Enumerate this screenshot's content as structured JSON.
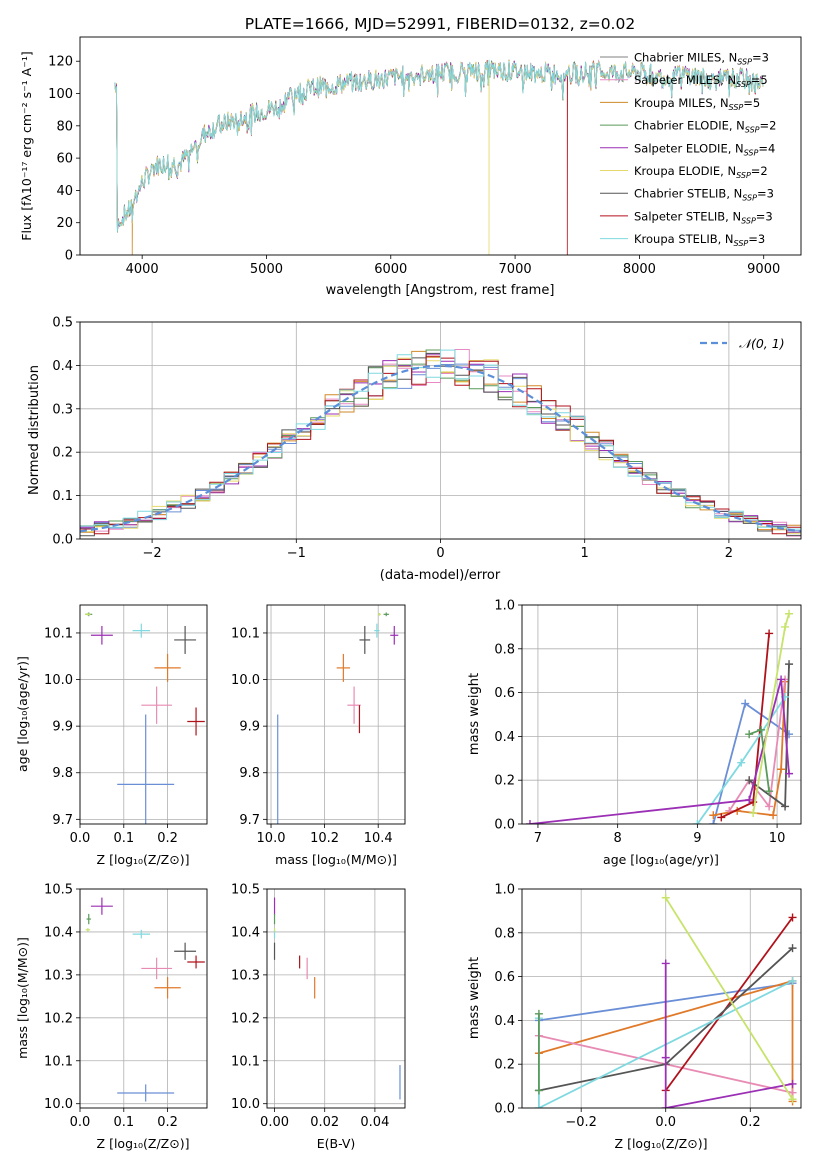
{
  "colors": {
    "series": [
      "#808080",
      "#e78ac3",
      "#d08a28",
      "#5a9a5a",
      "#9b2fb5",
      "#e6d96b",
      "#555555",
      "#b0121b",
      "#7fd9e0"
    ],
    "ssp_pts": [
      "#6a8fd6",
      "#e07a2a",
      "#e88bb4",
      "#b0121b",
      "#555555",
      "#7fd9e0",
      "#9b2fb5",
      "#5a9a5a",
      "#c6e36a"
    ],
    "gauss": "#5b8fd9",
    "grid": "#b0b0b0"
  },
  "panels": {
    "spectrum": {
      "title": "PLATE=1666, MJD=52991, FIBERID=0132, z=0.02",
      "ylabel": "Flux [fλ10⁻¹⁷ erg cm⁻² s⁻¹ A⁻¹]",
      "xlabel": "wavelength [Angstrom, rest frame]",
      "xticks": [
        "4000",
        "5000",
        "6000",
        "7000",
        "8000",
        "9000"
      ],
      "yticks": [
        "0",
        "20",
        "40",
        "60",
        "80",
        "100",
        "120"
      ],
      "legend": [
        "Chabrier MILES, N_SSP=3",
        "Salpeter MILES, N_SSP=5",
        "Kroupa MILES, N_SSP=5",
        "Chabrier ELODIE, N_SSP=2",
        "Salpeter ELODIE, N_SSP=4",
        "Kroupa ELODIE, N_SSP=2",
        "Chabrier STELIB, N_SSP=3",
        "Salpeter STELIB, N_SSP=3",
        "Kroupa STELIB, N_SSP=3"
      ]
    },
    "residuals": {
      "ylabel": "Normed distribution",
      "xlabel": "(data-model)/error",
      "xticks": [
        "−2",
        "−1",
        "0",
        "1",
        "2"
      ],
      "yticks": [
        "0.0",
        "0.1",
        "0.2",
        "0.3",
        "0.4",
        "0.5"
      ],
      "legend": "𝒩(0, 1)"
    },
    "age_z": {
      "ylabel": "age  [log₁₀(age/yr)]",
      "xlabel": "Z [log₁₀(Z/Z⊙)]",
      "xticks": [
        "0.0",
        "0.1",
        "0.2"
      ],
      "yticks": [
        "9.7",
        "9.8",
        "9.9",
        "10.0",
        "10.1"
      ]
    },
    "age_mass": {
      "xlabel": "mass [log₁₀(M/M⊙)]",
      "xticks": [
        "10.0",
        "10.2",
        "10.4"
      ],
      "yticks": [
        "9.7",
        "9.8",
        "9.9",
        "10.0",
        "10.1"
      ]
    },
    "mw_age": {
      "ylabel": "mass weight",
      "xlabel": "age  [log₁₀(age/yr)]",
      "xticks": [
        "7",
        "8",
        "9",
        "10"
      ],
      "yticks": [
        "0.0",
        "0.2",
        "0.4",
        "0.6",
        "0.8",
        "1.0"
      ]
    },
    "mass_z": {
      "ylabel": "mass [log₁₀(M/M⊙)]",
      "xlabel": "Z [log₁₀(Z/Z⊙)]",
      "xticks": [
        "0.0",
        "0.1",
        "0.2"
      ],
      "yticks": [
        "10.0",
        "10.1",
        "10.2",
        "10.3",
        "10.4",
        "10.5"
      ]
    },
    "mass_ebv": {
      "xlabel": "E(B-V)",
      "xticks": [
        "0.00",
        "0.02",
        "0.04"
      ],
      "yticks": [
        "10.0",
        "10.1",
        "10.2",
        "10.3",
        "10.4",
        "10.5"
      ]
    },
    "mw_z": {
      "ylabel": "mass weight",
      "xlabel": "Z [log₁₀(Z/Z⊙)]",
      "xticks": [
        "−0.2",
        "0.0",
        "0.2"
      ],
      "yticks": [
        "0.0",
        "0.2",
        "0.4",
        "0.6",
        "0.8",
        "1.0"
      ]
    }
  },
  "chart_data": [
    {
      "type": "line",
      "title": "PLATE=1666, MJD=52991, FIBERID=0132, z=0.02",
      "xlabel": "wavelength [Angstrom, rest frame]",
      "ylabel": "Flux [fλ10⁻¹⁷ erg cm⁻² s⁻¹ A⁻¹]",
      "xlim": [
        3500,
        9300
      ],
      "ylim": [
        0,
        135
      ],
      "continuum": {
        "x": [
          3800,
          3900,
          4000,
          4100,
          4200,
          4300,
          4400,
          4500,
          4600,
          4800,
          5000,
          5100,
          5200,
          5300,
          5400,
          5600,
          5800,
          6000,
          6200,
          6400,
          6600,
          6800,
          7000,
          7200,
          7400,
          7600,
          7800,
          8000,
          8200,
          8400,
          8600,
          8800,
          9000
        ],
        "y": [
          20,
          28,
          45,
          55,
          58,
          56,
          65,
          75,
          80,
          85,
          90,
          92,
          100,
          102,
          104,
          106,
          108,
          110,
          112,
          113,
          114,
          115,
          114,
          113,
          112,
          114,
          113,
          113,
          110,
          112,
          108,
          110,
          106
        ]
      },
      "dropouts": [
        {
          "x": 3920,
          "series": "Kroupa MILES, N_SSP=5"
        },
        {
          "x": 6790,
          "series": "Kroupa ELODIE, N_SSP=2"
        },
        {
          "x": 7420,
          "series": "Salpeter STELIB, N_SSP=3"
        }
      ],
      "series": [
        {
          "name": "Chabrier MILES, N_SSP=3"
        },
        {
          "name": "Salpeter MILES, N_SSP=5"
        },
        {
          "name": "Kroupa MILES, N_SSP=5"
        },
        {
          "name": "Chabrier ELODIE, N_SSP=2"
        },
        {
          "name": "Salpeter ELODIE, N_SSP=4"
        },
        {
          "name": "Kroupa ELODIE, N_SSP=2"
        },
        {
          "name": "Chabrier STELIB, N_SSP=3"
        },
        {
          "name": "Salpeter STELIB, N_SSP=3"
        },
        {
          "name": "Kroupa STELIB, N_SSP=3"
        }
      ],
      "legend_position": "top-right"
    },
    {
      "type": "line",
      "xlabel": "(data-model)/error",
      "ylabel": "Normed distribution",
      "xlim": [
        -2.5,
        2.5
      ],
      "ylim": [
        0,
        0.5
      ],
      "bin_width": 0.1,
      "series": [
        {
          "name": "𝒩(0, 1)",
          "mean": 0,
          "sigma": 1
        }
      ],
      "legend_position": "top-right"
    },
    {
      "type": "scatter",
      "xlabel": "Z [log₁₀(Z/Z⊙)]",
      "ylabel": "age  [log₁₀(age/yr)]",
      "xlim": [
        0,
        0.29
      ],
      "ylim": [
        9.69,
        10.16
      ],
      "points": [
        {
          "x": 0.15,
          "y": 9.775,
          "xerr": 0.065,
          "yerr": 0.15
        },
        {
          "x": 0.2,
          "y": 10.025,
          "xerr": 0.03,
          "yerr": 0.03
        },
        {
          "x": 0.175,
          "y": 9.945,
          "xerr": 0.035,
          "yerr": 0.04
        },
        {
          "x": 0.265,
          "y": 9.91,
          "xerr": 0.02,
          "yerr": 0.03
        },
        {
          "x": 0.24,
          "y": 10.085,
          "xerr": 0.025,
          "yerr": 0.03
        },
        {
          "x": 0.14,
          "y": 10.105,
          "xerr": 0.02,
          "yerr": 0.015
        },
        {
          "x": 0.05,
          "y": 10.095,
          "xerr": 0.025,
          "yerr": 0.02
        },
        {
          "x": 0.02,
          "y": 10.14,
          "xerr": 0.008,
          "yerr": 0.004
        },
        {
          "x": 0.018,
          "y": 10.14,
          "xerr": 0.006,
          "yerr": 0.003
        }
      ]
    },
    {
      "type": "scatter",
      "xlabel": "mass [log₁₀(M/M⊙)]",
      "xlim": [
        9.985,
        10.5
      ],
      "ylim": [
        9.69,
        10.16
      ],
      "points": [
        {
          "x": 10.025,
          "y": 9.775,
          "xerr": 0.0,
          "yerr": 0.15
        },
        {
          "x": 10.27,
          "y": 10.025,
          "xerr": 0.025,
          "yerr": 0.03
        },
        {
          "x": 10.31,
          "y": 9.945,
          "xerr": 0.025,
          "yerr": 0.04
        },
        {
          "x": 10.33,
          "y": 9.915,
          "xerr": 0.0,
          "yerr": 0.03
        },
        {
          "x": 10.35,
          "y": 10.085,
          "xerr": 0.02,
          "yerr": 0.03
        },
        {
          "x": 10.395,
          "y": 10.105,
          "xerr": 0.01,
          "yerr": 0.015
        },
        {
          "x": 10.46,
          "y": 10.095,
          "xerr": 0.015,
          "yerr": 0.02
        },
        {
          "x": 10.43,
          "y": 10.14,
          "xerr": 0.01,
          "yerr": 0.004
        },
        {
          "x": 10.405,
          "y": 10.14,
          "xerr": 0.005,
          "yerr": 0.003
        }
      ]
    },
    {
      "type": "line",
      "xlabel": "age  [log₁₀(age/yr)]",
      "ylabel": "mass weight",
      "xlim": [
        6.8,
        10.3
      ],
      "ylim": [
        0,
        1.0
      ],
      "series": [
        {
          "x": [
            9.2,
            9.6,
            10.15
          ],
          "y": [
            0.0,
            0.55,
            0.41
          ]
        },
        {
          "x": [
            9.2,
            9.5,
            9.95,
            10.05,
            10.1
          ],
          "y": [
            0.04,
            0.06,
            0.04,
            0.25,
            0.65
          ]
        },
        {
          "x": [
            9.4,
            9.65,
            9.9,
            10.1
          ],
          "y": [
            0.06,
            0.2,
            0.08,
            0.66
          ]
        },
        {
          "x": [
            9.3,
            9.7,
            9.9
          ],
          "y": [
            0.03,
            0.1,
            0.87
          ]
        },
        {
          "x": [
            9.65,
            10.1,
            10.15
          ],
          "y": [
            0.2,
            0.08,
            0.73
          ]
        },
        {
          "x": [
            9.0,
            9.55,
            10.1
          ],
          "y": [
            0.0,
            0.28,
            0.58
          ]
        },
        {
          "x": [
            6.9,
            9.65,
            10.05,
            10.15
          ],
          "y": [
            0.0,
            0.11,
            0.66,
            0.23
          ]
        },
        {
          "x": [
            9.65,
            9.8,
            9.9
          ],
          "y": [
            0.41,
            0.43,
            0.15
          ]
        },
        {
          "x": [
            9.7,
            10.1,
            10.15
          ],
          "y": [
            0.05,
            0.9,
            0.96
          ]
        }
      ]
    },
    {
      "type": "scatter",
      "xlabel": "Z [log₁₀(Z/Z⊙)]",
      "ylabel": "mass [log₁₀(M/M⊙)]",
      "xlim": [
        0,
        0.29
      ],
      "ylim": [
        9.99,
        10.5
      ],
      "points": [
        {
          "x": 0.15,
          "y": 10.025,
          "xerr": 0.065,
          "yerr": 0.02
        },
        {
          "x": 0.2,
          "y": 10.27,
          "xerr": 0.03,
          "yerr": 0.025
        },
        {
          "x": 0.175,
          "y": 10.315,
          "xerr": 0.035,
          "yerr": 0.025
        },
        {
          "x": 0.265,
          "y": 10.33,
          "xerr": 0.02,
          "yerr": 0.015
        },
        {
          "x": 0.24,
          "y": 10.355,
          "xerr": 0.025,
          "yerr": 0.02
        },
        {
          "x": 0.14,
          "y": 10.395,
          "xerr": 0.02,
          "yerr": 0.01
        },
        {
          "x": 0.05,
          "y": 10.46,
          "xerr": 0.025,
          "yerr": 0.02
        },
        {
          "x": 0.02,
          "y": 10.43,
          "xerr": 0.005,
          "yerr": 0.012
        },
        {
          "x": 0.018,
          "y": 10.405,
          "xerr": 0.005,
          "yerr": 0.004
        }
      ]
    },
    {
      "type": "scatter",
      "xlabel": "E(B-V)",
      "xlim": [
        -0.003,
        0.052
      ],
      "ylim": [
        9.99,
        10.5
      ],
      "points": [
        {
          "x": 0.05,
          "y": 10.05,
          "xerr": 0.0,
          "yerr": 0.04
        },
        {
          "x": 0.016,
          "y": 10.27,
          "xerr": 0.0,
          "yerr": 0.025
        },
        {
          "x": 0.013,
          "y": 10.315,
          "xerr": 0.0,
          "yerr": 0.025
        },
        {
          "x": 0.01,
          "y": 10.33,
          "xerr": 0.0,
          "yerr": 0.015
        },
        {
          "x": 0.0,
          "y": 10.355,
          "xerr": 0.0,
          "yerr": 0.02
        },
        {
          "x": 0.0,
          "y": 10.395,
          "xerr": 0.0,
          "yerr": 0.01
        },
        {
          "x": 0.0,
          "y": 10.46,
          "xerr": 0.0,
          "yerr": 0.02
        },
        {
          "x": 0.0,
          "y": 10.43,
          "xerr": 0.0,
          "yerr": 0.012
        },
        {
          "x": 0.0,
          "y": 10.405,
          "xerr": 0.0,
          "yerr": 0.004
        }
      ]
    },
    {
      "type": "line",
      "xlabel": "Z [log₁₀(Z/Z⊙)]",
      "ylabel": "mass weight",
      "xlim": [
        -0.34,
        0.32
      ],
      "ylim": [
        0,
        1.0
      ],
      "series": [
        {
          "x": [
            -0.3,
            0.3
          ],
          "y": [
            0.4,
            0.57
          ]
        },
        {
          "x": [
            -0.3,
            0.3,
            0.3
          ],
          "y": [
            0.25,
            0.58,
            0.03
          ]
        },
        {
          "x": [
            -0.3,
            0.3
          ],
          "y": [
            0.33,
            0.07
          ]
        },
        {
          "x": [
            0.0,
            0.3
          ],
          "y": [
            0.08,
            0.87
          ]
        },
        {
          "x": [
            -0.3,
            0.0,
            0.3
          ],
          "y": [
            0.08,
            0.2,
            0.73
          ]
        },
        {
          "x": [
            -0.3,
            -0.3,
            0.3
          ],
          "y": [
            0.41,
            0.0,
            0.58
          ]
        },
        {
          "x": [
            0.0,
            0.0,
            0.0,
            0.3
          ],
          "y": [
            0.66,
            0.23,
            0.0,
            0.11
          ]
        },
        {
          "x": [
            -0.3,
            -0.3
          ],
          "y": [
            0.08,
            0.43
          ]
        },
        {
          "x": [
            0.0,
            0.3
          ],
          "y": [
            0.96,
            0.04
          ]
        }
      ]
    }
  ]
}
